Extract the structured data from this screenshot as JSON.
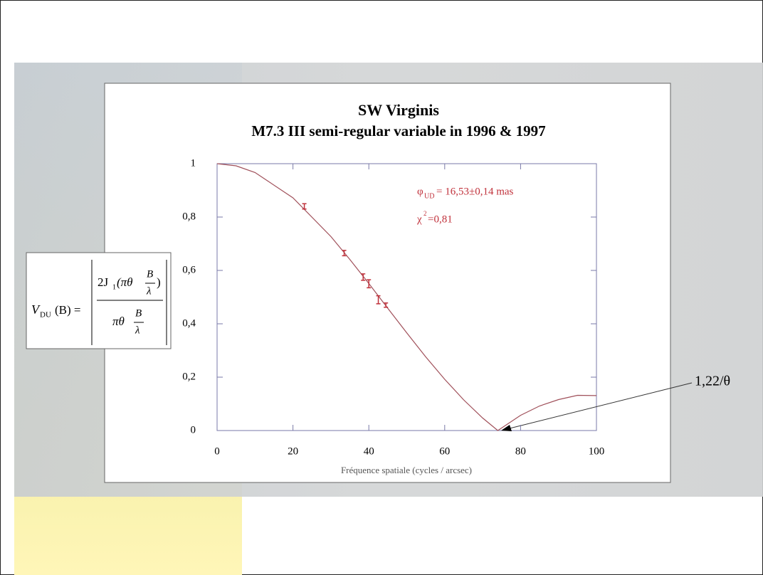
{
  "chart_data": {
    "type": "line",
    "title": "SW  Virginis",
    "subtitle": "M7.3 III semi-regular variable in 1996 & 1997",
    "x_label": "Fréquence spatiale (cycles / arcsec)",
    "xlim": [
      0,
      100
    ],
    "xticks": [
      0,
      20,
      40,
      60,
      80,
      100
    ],
    "ylim": [
      0,
      1
    ],
    "yticks": [
      0,
      {
        "value": 0.2,
        "label": "0,2"
      },
      {
        "value": 0.4,
        "label": "0,4"
      },
      {
        "value": 0.6,
        "label": "0,6"
      },
      {
        "value": 0.8,
        "label": "0,8"
      },
      1
    ],
    "model": {
      "color": "#a0505a",
      "x": [
        0,
        5,
        10,
        20,
        30,
        35,
        40,
        45,
        50,
        55,
        60,
        65,
        70,
        74,
        80,
        85,
        90,
        95,
        100
      ],
      "values": [
        1,
        0.992,
        0.967,
        0.872,
        0.727,
        0.641,
        0.551,
        0.458,
        0.366,
        0.276,
        0.192,
        0.115,
        0.047,
        0,
        0.057,
        0.092,
        0.116,
        0.132,
        0.131
      ]
    },
    "measurements": {
      "color": "#c0303a",
      "x": [
        23,
        33.5,
        38.5,
        40,
        42.5,
        44.5
      ],
      "values": [
        0.84,
        0.665,
        0.575,
        0.55,
        0.49,
        0.47
      ],
      "errors": [
        0.01,
        0.01,
        0.012,
        0.015,
        0.015,
        0.008
      ]
    },
    "annotations": {
      "diameter": {
        "symbol": "φ",
        "sub": "UD",
        "text": " = 16,53±0,14 mas"
      },
      "chi2": {
        "symbol": "χ",
        "sup": "2",
        "text": "=0,81"
      },
      "zero": "1,22/θ"
    },
    "formula": {
      "v": "V",
      "v_sub": "DU",
      "arg": "(B) =",
      "num_a": "2J",
      "num_sub": "1",
      "num_b": "(πθ",
      "num_c": ")",
      "frac_top": "B",
      "frac_bot": "λ",
      "den": "πθ"
    }
  }
}
